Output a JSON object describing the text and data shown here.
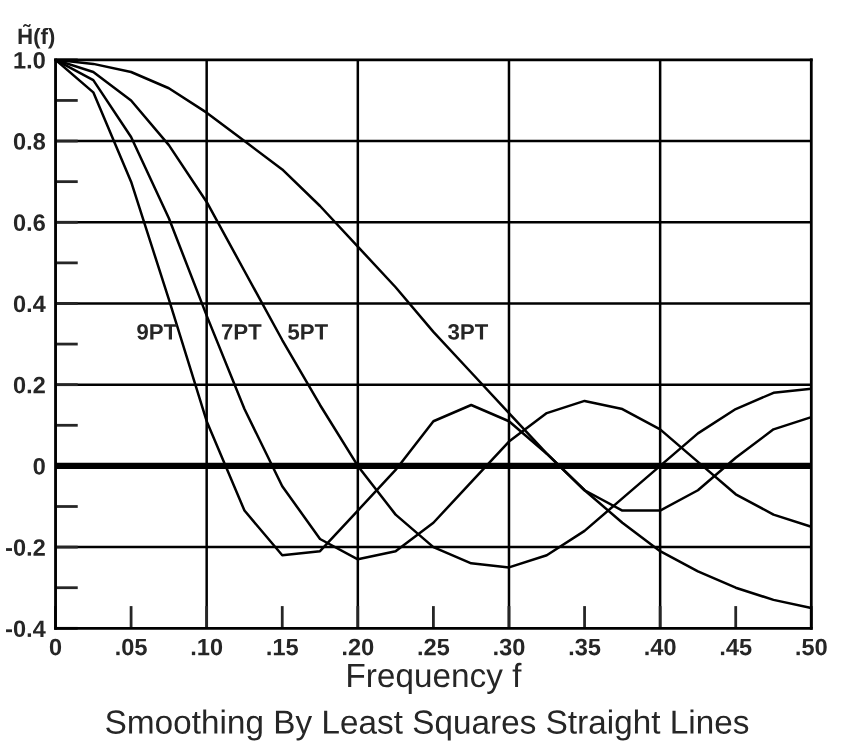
{
  "chart_data": {
    "type": "line",
    "xlabel": "Frequency f",
    "ylabel": "H̃(f)",
    "title": "Smoothing By Least Squares Straight Lines",
    "x": [
      0,
      0.025,
      0.05,
      0.075,
      0.1,
      0.125,
      0.15,
      0.175,
      0.2,
      0.225,
      0.25,
      0.275,
      0.3,
      0.325,
      0.35,
      0.375,
      0.4,
      0.425,
      0.45,
      0.475,
      0.5
    ],
    "series": [
      {
        "name": "3PT",
        "color": "#000000",
        "values": [
          1.0,
          0.99,
          0.97,
          0.93,
          0.87,
          0.8,
          0.73,
          0.64,
          0.54,
          0.44,
          0.33,
          0.23,
          0.13,
          0.03,
          -0.06,
          -0.14,
          -0.21,
          -0.26,
          -0.3,
          -0.33,
          -0.35
        ]
      },
      {
        "name": "5PT",
        "color": "#000000",
        "values": [
          1.0,
          0.97,
          0.9,
          0.79,
          0.65,
          0.48,
          0.31,
          0.15,
          0.0,
          -0.12,
          -0.2,
          -0.24,
          -0.25,
          -0.22,
          -0.16,
          -0.08,
          0.0,
          0.08,
          0.14,
          0.18,
          0.19
        ]
      },
      {
        "name": "7PT",
        "color": "#000000",
        "values": [
          1.0,
          0.95,
          0.81,
          0.61,
          0.37,
          0.14,
          -0.05,
          -0.18,
          -0.23,
          -0.21,
          -0.14,
          -0.04,
          0.06,
          0.13,
          0.16,
          0.14,
          0.09,
          0.01,
          -0.07,
          -0.12,
          -0.15
        ]
      },
      {
        "name": "9PT",
        "color": "#000000",
        "values": [
          1.0,
          0.92,
          0.7,
          0.41,
          0.11,
          -0.11,
          -0.22,
          -0.21,
          -0.11,
          -0.01,
          0.11,
          0.15,
          0.11,
          0.03,
          -0.06,
          -0.11,
          -0.11,
          -0.06,
          0.02,
          0.09,
          0.12
        ]
      }
    ],
    "xlim": [
      0,
      0.5
    ],
    "ylim": [
      -0.4,
      1.0
    ],
    "xticks": [
      {
        "value": 0,
        "label": "0"
      },
      {
        "value": 0.05,
        "label": ".05"
      },
      {
        "value": 0.1,
        "label": ".10"
      },
      {
        "value": 0.15,
        "label": ".15"
      },
      {
        "value": 0.2,
        "label": ".20"
      },
      {
        "value": 0.25,
        "label": ".25"
      },
      {
        "value": 0.3,
        "label": ".30"
      },
      {
        "value": 0.35,
        "label": ".35"
      },
      {
        "value": 0.4,
        "label": ".40"
      },
      {
        "value": 0.45,
        "label": ".45"
      },
      {
        "value": 0.5,
        "label": ".50"
      }
    ],
    "yticks": [
      -0.4,
      {
        "value": -0.3,
        "label": null
      },
      -0.2,
      {
        "value": -0.1,
        "label": null
      },
      0,
      {
        "value": 0.1,
        "label": null
      },
      0.2,
      {
        "value": 0.3,
        "label": null
      },
      0.4,
      {
        "value": 0.5,
        "label": null
      },
      0.6,
      {
        "value": 0.7,
        "label": null
      },
      0.8,
      {
        "value": 0.9,
        "label": null
      },
      {
        "value": 1.0,
        "label": "1.0"
      }
    ],
    "ref_lines": [
      {
        "axis": "y",
        "value": 0,
        "color": "#000000"
      }
    ],
    "grid": true,
    "legend": false,
    "marker": "none",
    "line_style": "solid"
  }
}
